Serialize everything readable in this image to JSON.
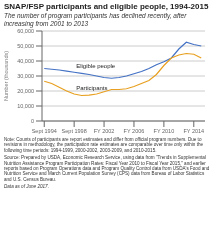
{
  "chart_data": {
    "type": "line",
    "title": "SNAP/FSP participants and eligible people, 1994-2015",
    "subtitle": "The number of program participants has declined recently, after\nincreasing from 2001 to 2013",
    "ylabel": "Number (thousands)",
    "x": [
      0,
      1,
      2,
      3,
      4,
      5,
      6,
      7,
      8,
      9,
      10,
      11,
      12,
      13,
      14,
      15,
      16,
      17,
      18,
      19,
      20,
      21
    ],
    "series": [
      {
        "name": "Eligible people",
        "color": "#4472c4",
        "values": [
          35000,
          34500,
          34000,
          33200,
          32500,
          31800,
          31000,
          30000,
          29000,
          28500,
          29000,
          30000,
          31500,
          33000,
          35000,
          37500,
          39500,
          42000,
          48000,
          52500,
          51000,
          50000
        ]
      },
      {
        "name": "Participants",
        "color": "#e8a020",
        "values": [
          26500,
          25000,
          22500,
          20000,
          18000,
          17000,
          17200,
          18000,
          19500,
          21000,
          21000,
          21500,
          23000,
          25000,
          27000,
          31000,
          37000,
          42000,
          44000,
          45000,
          44500,
          42000
        ]
      }
    ],
    "xlim": [
      -0.3,
      21.5
    ],
    "xticks": [
      {
        "value": 0,
        "label": "Sept 1994"
      },
      {
        "value": 4,
        "label": "Sept 1998"
      },
      {
        "value": 8,
        "label": "FY 2002"
      },
      {
        "value": 12,
        "label": "FY 2006"
      },
      {
        "value": 16,
        "label": "FY 2010"
      },
      {
        "value": 20,
        "label": "FY 2014"
      }
    ],
    "ylim": [
      0,
      60000
    ],
    "yticks": [
      0,
      {
        "value": 10000,
        "label": "10,000"
      },
      {
        "value": 20000,
        "label": "20,000"
      },
      {
        "value": 30000,
        "label": "30,000"
      },
      {
        "value": 40000,
        "label": "40,000"
      },
      {
        "value": 50000,
        "label": "50,000"
      },
      {
        "value": 60000,
        "label": "60,000"
      }
    ],
    "grid": true,
    "note": "Note: Counts of participants are report estimates and differ from official program numbers. Due to revisions in methodology, the participation rate estimates are comparable over time only within the following time periods: 1994-1999, 2000-2002, 2003-2009, and 2010-2015.",
    "source": "Source: Prepared by USDA, Economic Research Service, using data from \"Trends in Supplemental Nutrition Assistance Program Participation Rates: Fiscal Year 2010 to Fiscal Year 2015,\" and earlier reports based on Program Operations data and Program Quality Control data from USDA's Food and Nutrition Service and March Current Population Survey (CPS) data from Bureau of Labor Statistics and U.S. Census Bureau.",
    "data_as_of": "Data as of June 2017."
  }
}
